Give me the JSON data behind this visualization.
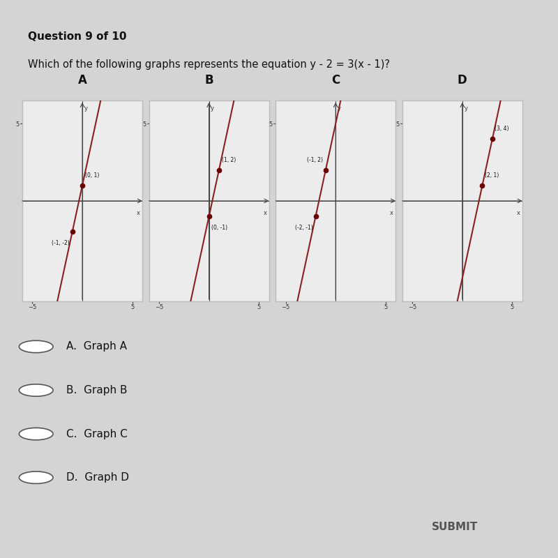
{
  "bg_color": "#d4d4d4",
  "title_bold": "Question 9 of 10",
  "question": "Which of the following graphs represents the equation y - 2 = 3(x - 1)?",
  "graphs": [
    {
      "label": "A",
      "points": [
        [
          0,
          1
        ],
        [
          -1,
          -2
        ]
      ],
      "point_labels": [
        "(0, 1)",
        "(-1, -2)"
      ],
      "slope": 3,
      "intercept": 1
    },
    {
      "label": "B",
      "points": [
        [
          1,
          2
        ],
        [
          0,
          -1
        ]
      ],
      "point_labels": [
        "(1, 2)",
        "(0, -1)"
      ],
      "slope": 3,
      "intercept": -1
    },
    {
      "label": "C",
      "points": [
        [
          -1,
          2
        ],
        [
          -2,
          -1
        ]
      ],
      "point_labels": [
        "(-1, 2)",
        "(-2, -1)"
      ],
      "slope": 3,
      "intercept": 5
    },
    {
      "label": "D",
      "points": [
        [
          3,
          4
        ],
        [
          2,
          1
        ]
      ],
      "point_labels": [
        "(3, 4)",
        "(2, 1)"
      ],
      "slope": 3,
      "intercept": -5
    }
  ],
  "choices": [
    [
      "A",
      "Graph A"
    ],
    [
      "B",
      "Graph B"
    ],
    [
      "C",
      "Graph C"
    ],
    [
      "D",
      "Graph D"
    ]
  ],
  "line_color": "#8b2020",
  "dot_color": "#6b0000",
  "axis_color": "#444444",
  "border_color": "#bbbbbb",
  "graph_bg": "#ececec",
  "submit_color": "#b0b0b0",
  "submit_text_color": "#555555"
}
